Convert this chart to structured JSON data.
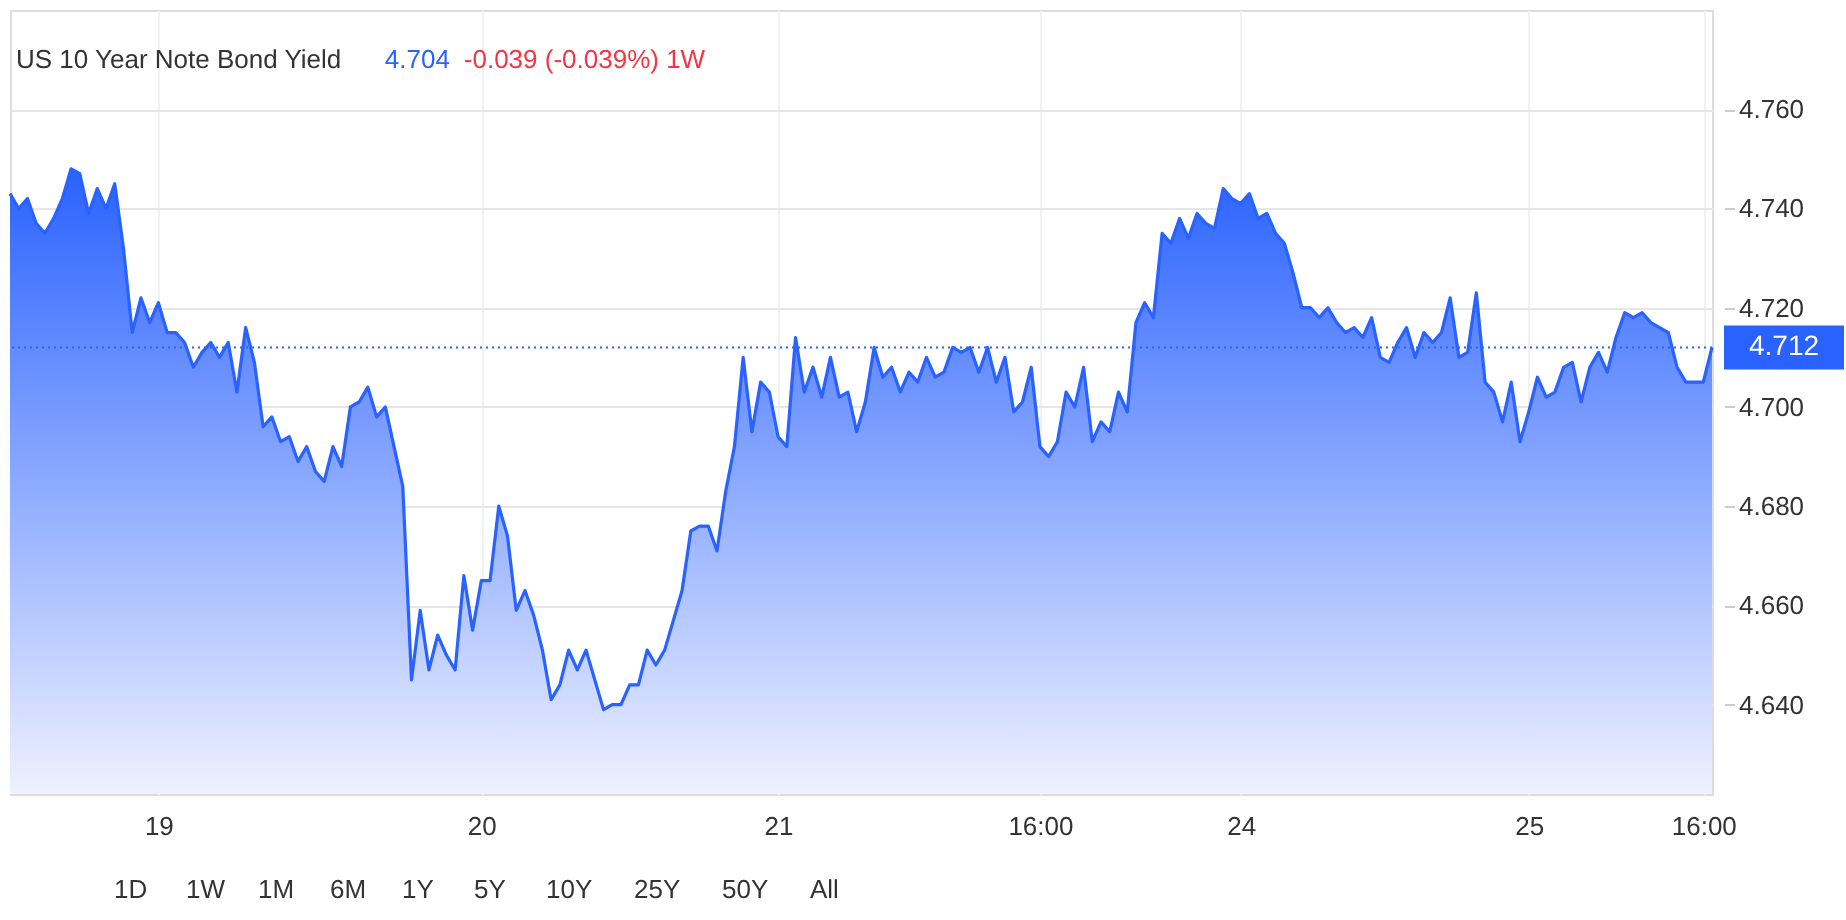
{
  "chart_data": {
    "type": "area",
    "title": "US 10 Year Note Bond Yield",
    "annotations": [
      "4.704",
      "-0.039 (-0.039%) 1W",
      "1D",
      "1W",
      "1M",
      "6M",
      "1Y",
      "5Y",
      "10Y",
      "25Y",
      "50Y",
      "All"
    ],
    "categories": [
      null,
      null,
      null,
      null,
      null,
      null,
      null,
      null,
      null,
      null,
      null,
      null,
      null,
      null,
      null,
      null,
      null,
      "19",
      null,
      null,
      null,
      null,
      null,
      null,
      null,
      null,
      null,
      null,
      null,
      null,
      null,
      null,
      null,
      null,
      null,
      null,
      null,
      null,
      null,
      null,
      null,
      null,
      null,
      null,
      null,
      null,
      null,
      null,
      null,
      null,
      null,
      null,
      null,
      null,
      "20",
      null,
      null,
      null,
      null,
      null,
      null,
      null,
      null,
      null,
      null,
      null,
      null,
      null,
      null,
      null,
      null,
      null,
      null,
      null,
      null,
      null,
      null,
      null,
      null,
      null,
      null,
      null,
      null,
      null,
      null,
      null,
      null,
      null,
      "21",
      null,
      null,
      null,
      null,
      null,
      null,
      null,
      null,
      null,
      null,
      null,
      null,
      null,
      null,
      null,
      null,
      null,
      null,
      null,
      null,
      null,
      null,
      null,
      null,
      null,
      null,
      null,
      null,
      null,
      "16:00",
      null,
      null,
      null,
      null,
      null,
      null,
      null,
      null,
      null,
      null,
      null,
      null,
      null,
      null,
      null,
      null,
      null,
      null,
      null,
      null,
      null,
      null,
      "24",
      null,
      null,
      null,
      null,
      null,
      null,
      null,
      null,
      null,
      null,
      null,
      null,
      null,
      null,
      null,
      null,
      null,
      null,
      null,
      null,
      null,
      null,
      null,
      null,
      null,
      null,
      null,
      null,
      null,
      null,
      null,
      null,
      "25",
      null,
      null,
      null,
      null,
      null,
      null,
      null,
      null,
      null,
      null,
      null,
      null,
      null,
      null,
      null,
      null,
      null,
      null,
      null,
      "16:00",
      null
    ],
    "series": [
      {
        "color": "#2962ff",
        "values": [
          4.743,
          4.74,
          4.742,
          4.737,
          4.735,
          4.738,
          4.742,
          4.748,
          4.747,
          4.739,
          4.744,
          4.74,
          4.745,
          4.732,
          4.715,
          4.722,
          4.717,
          4.721,
          4.715,
          4.715,
          4.713,
          4.708,
          4.711,
          4.713,
          4.71,
          4.713,
          4.703,
          4.716,
          4.709,
          4.696,
          4.698,
          4.693,
          4.694,
          4.689,
          4.692,
          4.687,
          4.685,
          4.692,
          4.688,
          4.7,
          4.701,
          4.704,
          4.698,
          4.7,
          4.692,
          4.684,
          4.645,
          4.659,
          4.647,
          4.654,
          4.65,
          4.647,
          4.666,
          4.655,
          4.665,
          4.665,
          4.68,
          4.674,
          4.659,
          4.663,
          4.658,
          4.651,
          4.641,
          4.644,
          4.651,
          4.647,
          4.651,
          4.645,
          4.639,
          4.64,
          4.64,
          4.644,
          4.644,
          4.651,
          4.648,
          4.651,
          4.657,
          4.663,
          4.675,
          4.676,
          4.676,
          4.671,
          4.683,
          4.692,
          4.71,
          4.695,
          4.705,
          4.703,
          4.694,
          4.692,
          4.714,
          4.703,
          4.708,
          4.702,
          4.71,
          4.702,
          4.703,
          4.695,
          4.701,
          4.712,
          4.706,
          4.708,
          4.703,
          4.707,
          4.705,
          4.71,
          4.706,
          4.707,
          4.712,
          4.711,
          4.712,
          4.707,
          4.712,
          4.705,
          4.71,
          4.699,
          4.701,
          4.708,
          4.692,
          4.69,
          4.693,
          4.703,
          4.7,
          4.708,
          4.693,
          4.697,
          4.695,
          4.703,
          4.699,
          4.717,
          4.721,
          4.718,
          4.735,
          4.733,
          4.738,
          4.734,
          4.739,
          4.737,
          4.736,
          4.744,
          4.742,
          4.741,
          4.743,
          4.738,
          4.739,
          4.735,
          4.733,
          4.727,
          4.72,
          4.72,
          4.718,
          4.72,
          4.717,
          4.715,
          4.716,
          4.714,
          4.718,
          4.71,
          4.709,
          4.713,
          4.716,
          4.71,
          4.715,
          4.713,
          4.715,
          4.722,
          4.71,
          4.711,
          4.723,
          4.705,
          4.703,
          4.697,
          4.705,
          4.693,
          4.699,
          4.706,
          4.702,
          4.703,
          4.708,
          4.709,
          4.701,
          4.708,
          4.711,
          4.707,
          4.714,
          4.719,
          4.718,
          4.719,
          4.717,
          4.716,
          4.715,
          4.708,
          4.705,
          4.705,
          4.705,
          4.712
        ]
      }
    ],
    "ylim": [
      4.622,
      4.78
    ],
    "yticks": [
      {
        "value": 4.64,
        "label": "4.640"
      },
      {
        "value": 4.66,
        "label": "4.660"
      },
      {
        "value": 4.68,
        "label": "4.680"
      },
      {
        "value": 4.7,
        "label": "4.700"
      },
      {
        "value": 4.72,
        "label": "4.720"
      },
      {
        "value": 4.74,
        "label": "4.740"
      },
      {
        "value": 4.76,
        "label": "4.760"
      }
    ],
    "ref_lines": [
      {
        "axis": "y",
        "value": 4.712,
        "label": "4.712",
        "color": "#2962ff",
        "line_style": "dotted"
      }
    ],
    "grid": true
  }
}
